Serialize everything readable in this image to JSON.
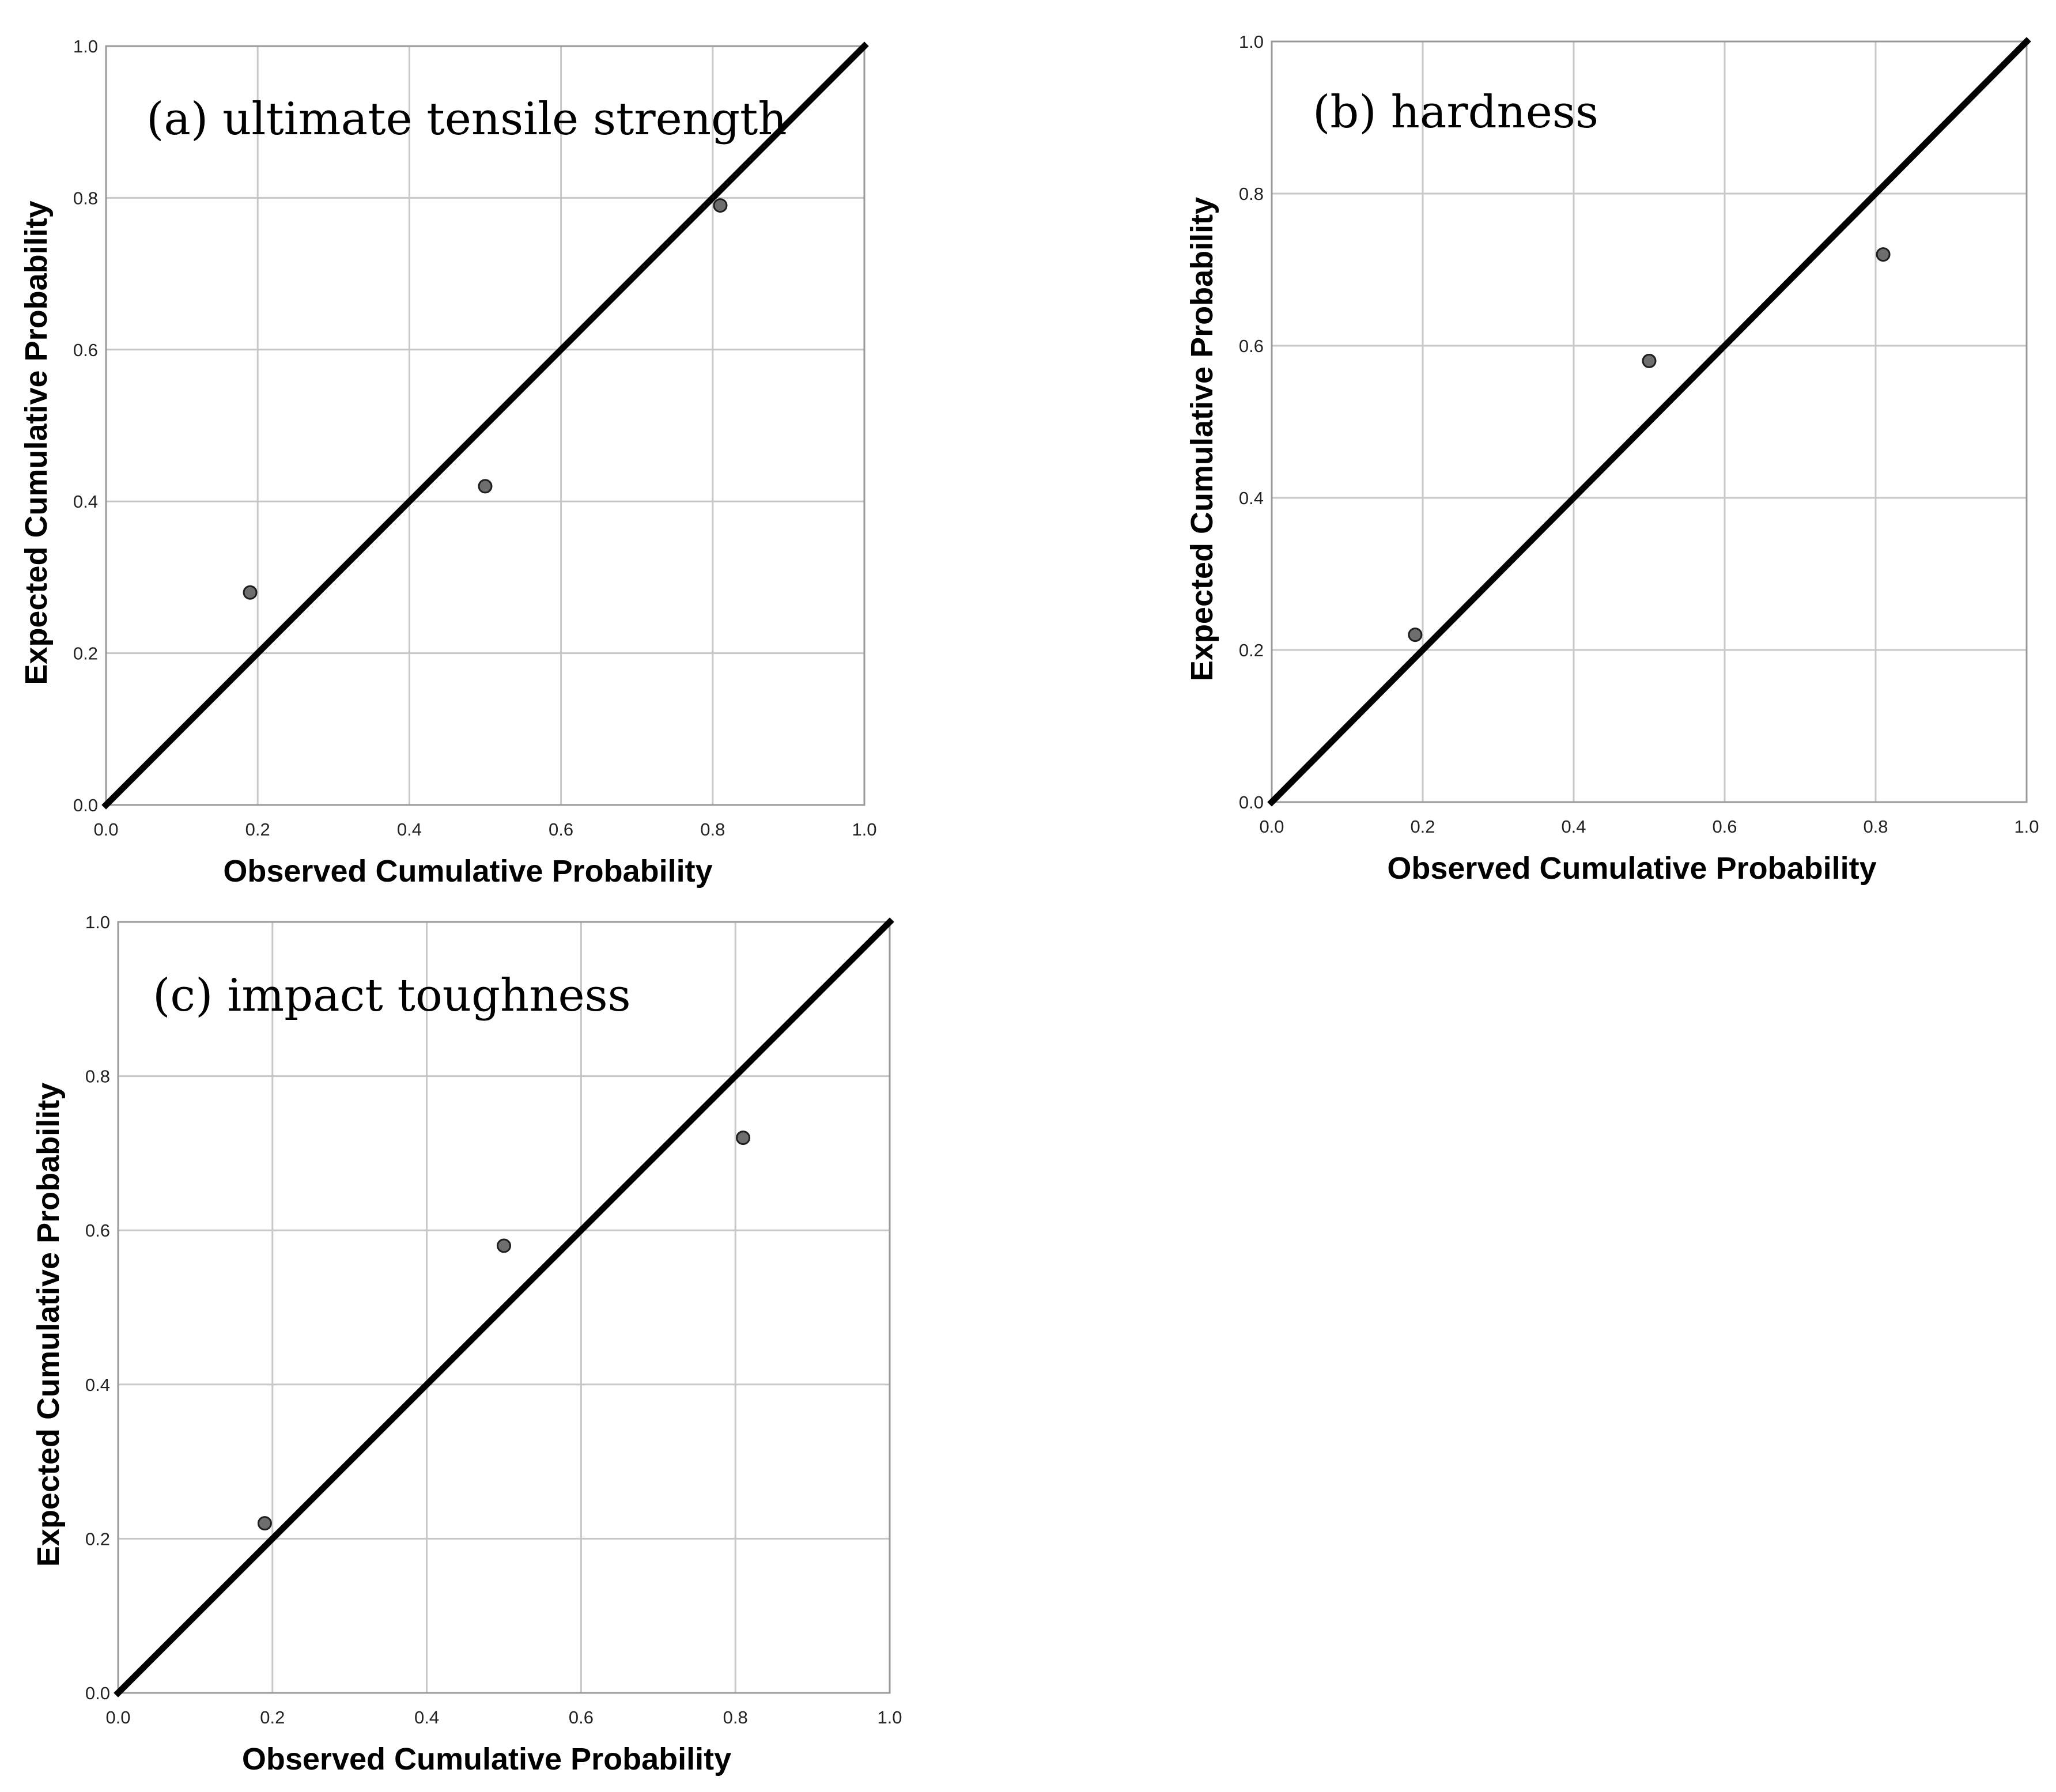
{
  "chart_data": [
    {
      "type": "scatter",
      "title": "(a) ultimate tensile strength",
      "xlabel": "Observed Cumulative Probability",
      "ylabel": "Expected Cumulative Probability",
      "xlim": [
        0,
        1
      ],
      "ylim": [
        0,
        1
      ],
      "xticks": [
        "0.0",
        "0.2",
        "0.4",
        "0.6",
        "0.8",
        "1.0"
      ],
      "yticks": [
        "0.0",
        "0.2",
        "0.4",
        "0.6",
        "0.8",
        "1.0"
      ],
      "grid": true,
      "reference_line": {
        "from": [
          0,
          0
        ],
        "to": [
          1,
          1
        ]
      },
      "points": [
        {
          "x": 0.19,
          "y": 0.28
        },
        {
          "x": 0.5,
          "y": 0.42
        },
        {
          "x": 0.81,
          "y": 0.79
        }
      ]
    },
    {
      "type": "scatter",
      "title": "(b) hardness",
      "xlabel": "Observed Cumulative Probability",
      "ylabel": "Expected Cumulative Probability",
      "xlim": [
        0,
        1
      ],
      "ylim": [
        0,
        1
      ],
      "xticks": [
        "0.0",
        "0.2",
        "0.4",
        "0.6",
        "0.8",
        "1.0"
      ],
      "yticks": [
        "0.0",
        "0.2",
        "0.4",
        "0.6",
        "0.8",
        "1.0"
      ],
      "grid": true,
      "reference_line": {
        "from": [
          0,
          0
        ],
        "to": [
          1,
          1
        ]
      },
      "points": [
        {
          "x": 0.19,
          "y": 0.22
        },
        {
          "x": 0.5,
          "y": 0.58
        },
        {
          "x": 0.81,
          "y": 0.72
        }
      ]
    },
    {
      "type": "scatter",
      "title": "(c) impact toughness",
      "xlabel": "Observed Cumulative Probability",
      "ylabel": "Expected Cumulative Probability",
      "xlim": [
        0,
        1
      ],
      "ylim": [
        0,
        1
      ],
      "xticks": [
        "0.0",
        "0.2",
        "0.4",
        "0.6",
        "0.8",
        "1.0"
      ],
      "yticks": [
        "0.0",
        "0.2",
        "0.4",
        "0.6",
        "0.8",
        "1.0"
      ],
      "grid": true,
      "reference_line": {
        "from": [
          0,
          0
        ],
        "to": [
          1,
          1
        ]
      },
      "points": [
        {
          "x": 0.19,
          "y": 0.22
        },
        {
          "x": 0.5,
          "y": 0.58
        },
        {
          "x": 0.81,
          "y": 0.72
        }
      ]
    }
  ]
}
